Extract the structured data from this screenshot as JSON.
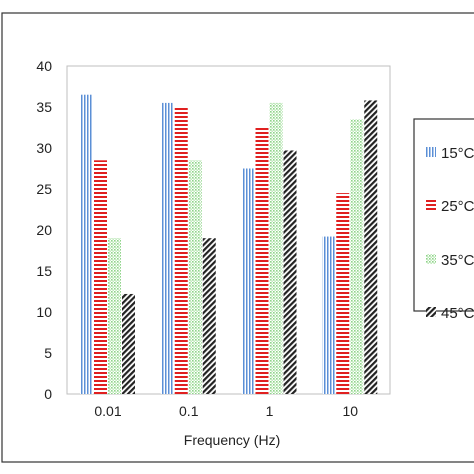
{
  "chart_data": {
    "type": "bar",
    "xlabel": "Frequency (Hz)",
    "ylabel": "",
    "categories": [
      "0.01",
      "0.1",
      "1",
      "10"
    ],
    "ylim": [
      0,
      40
    ],
    "yticks": [
      "0",
      "5",
      "10",
      "15",
      "20",
      "25",
      "30",
      "35",
      "40"
    ],
    "grid": false,
    "legend_position": "right",
    "series": [
      {
        "name": "15°C",
        "values": [
          36.5,
          35.5,
          27.5,
          19.2
        ],
        "color": "#5b8fd6",
        "pattern": "vertical-lines"
      },
      {
        "name": "25°C",
        "values": [
          28.5,
          35.0,
          32.5,
          24.5
        ],
        "color": "#e02020",
        "pattern": "horizontal-lines"
      },
      {
        "name": "35°C",
        "values": [
          19.0,
          28.5,
          35.5,
          33.5
        ],
        "color": "#8fd48a",
        "pattern": "dots"
      },
      {
        "name": "45°C",
        "values": [
          12.2,
          19.0,
          29.7,
          35.8
        ],
        "color": "#222222",
        "pattern": "diagonal-hatch"
      }
    ]
  }
}
